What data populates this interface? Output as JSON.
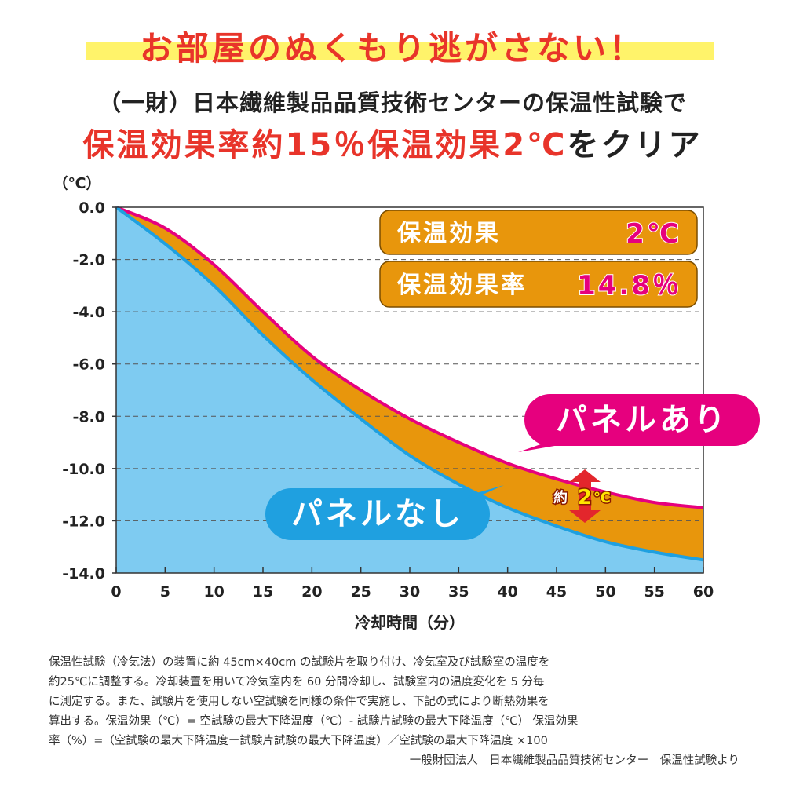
{
  "headline": "お部屋のぬくもり逃がさない！",
  "subtitle": "（一財）日本繊維製品品質技術センターの保温性試験で",
  "claim": {
    "red_text": "保温効果率約15％保温効果2℃",
    "dark_text": "をクリア"
  },
  "chart_data": {
    "type": "area",
    "y_unit_label": "（℃）",
    "xlabel": "冷却時間（分）",
    "xlim": [
      0,
      60
    ],
    "ylim": [
      -14.0,
      0.0
    ],
    "x_ticks": [
      0,
      5,
      10,
      15,
      20,
      25,
      30,
      35,
      40,
      45,
      50,
      55,
      60
    ],
    "x_tick_labels": [
      "0",
      "5",
      "10",
      "15",
      "20",
      "25",
      "30",
      "35",
      "40",
      "45",
      "50",
      "55",
      "60"
    ],
    "y_ticks": [
      0,
      -2,
      -4,
      -6,
      -8,
      -10,
      -12,
      -14
    ],
    "y_tick_labels": [
      "0.0",
      "-2.0",
      "-4.0",
      "-6.0",
      "-8.0",
      "-10.0",
      "-12.0",
      "-14.0"
    ],
    "grid": "horizontal dashed",
    "x": [
      0,
      5,
      10,
      15,
      20,
      25,
      30,
      35,
      40,
      45,
      50,
      55,
      60
    ],
    "series": [
      {
        "name": "パネルあり",
        "color": "#e6007e",
        "values": [
          0.0,
          -0.8,
          -2.2,
          -4.0,
          -5.7,
          -7.0,
          -8.1,
          -9.0,
          -9.8,
          -10.4,
          -10.9,
          -11.3,
          -11.5
        ]
      },
      {
        "name": "パネルなし",
        "color": "#1fa0e0",
        "values": [
          0.0,
          -1.4,
          -3.0,
          -4.9,
          -6.6,
          -8.1,
          -9.5,
          -10.6,
          -11.5,
          -12.2,
          -12.8,
          -13.2,
          -13.5
        ]
      }
    ],
    "info_boxes": [
      {
        "label": "保温効果",
        "value": "2℃"
      },
      {
        "label": "保温効果率",
        "value": "14.8％"
      }
    ],
    "diff_annotation": {
      "prefix": "約",
      "value": "2",
      "unit": "℃",
      "at_x": 47
    },
    "fill_colors": {
      "below": "#7ecbf1",
      "between": "#e8960c",
      "plot_bg": "#ffffff"
    }
  },
  "notes": [
    "保温性試験（冷気法）の装置に約 45cm×40cm の試験片を取り付け、冷気室及び試験室の温度を",
    "約25℃に調整する。冷却装置を用いて冷気室内を 60 分間冷却し、試験室内の温度変化を 5 分毎",
    "に測定する。また、試験片を使用しない空試験を同様の条件で実施し、下記の式により断熱効果を",
    "算出する。保温効果（℃）= 空試験の最大下降温度（℃）- 試験片試験の最大下降温度（℃） 保温効果",
    "率（%）=（空試験の最大下降温度ー試験片試験の最大下降温度）／空試験の最大下降温度 ×100"
  ],
  "source": "一般財団法人　日本繊維製品品質技術センター　保温性試験より"
}
